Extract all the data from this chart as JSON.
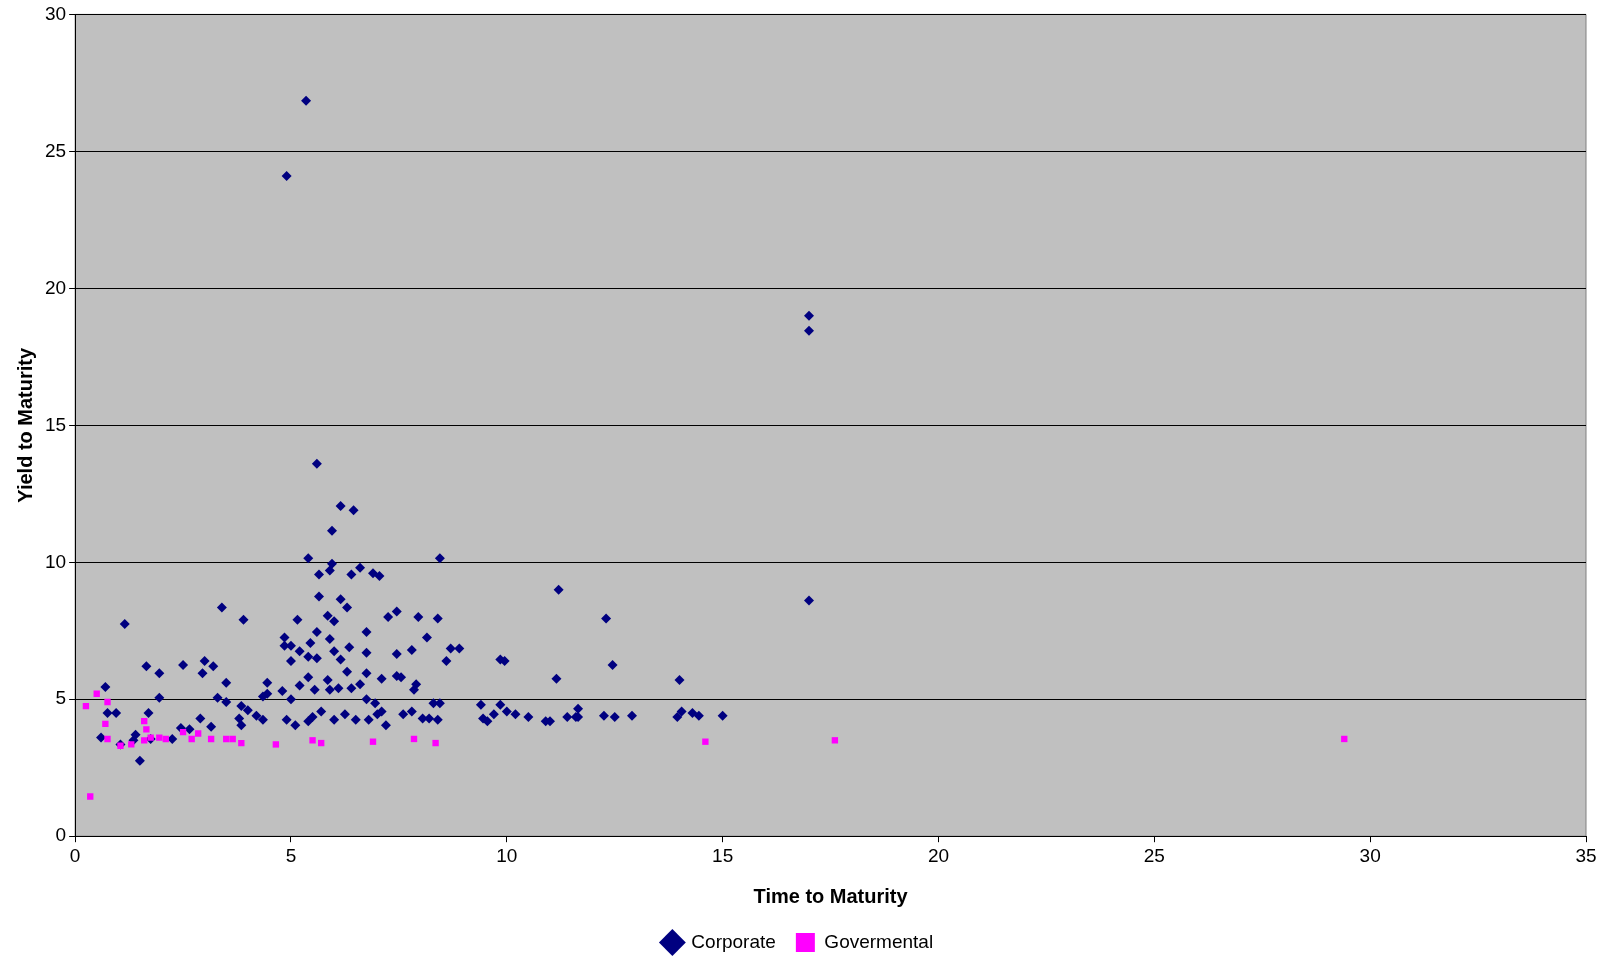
{
  "chart_data": {
    "type": "scatter",
    "xlabel": "Time to Maturity",
    "ylabel": "Yield to Maturity",
    "xlim": [
      0,
      35
    ],
    "xticks": [
      0,
      5,
      10,
      15,
      20,
      25,
      30,
      35
    ],
    "ylim": [
      0,
      30
    ],
    "yticks": [
      0,
      5,
      10,
      15,
      20,
      25,
      30
    ],
    "grid": "y",
    "legend": "bottom",
    "series": [
      {
        "name": "Corporate",
        "color": "#000080",
        "marker": "diamond",
        "x": [
          5.35,
          4.9,
          17,
          17,
          17,
          5.6,
          6.15,
          6.45,
          5.95,
          5.4,
          8.45,
          5.95,
          6.6,
          5.9,
          6.9,
          7.05,
          5.65,
          6.4,
          11.2,
          5.65,
          6.15,
          6.3,
          3.4,
          7.45,
          7.25,
          5.85,
          7.95,
          8.4,
          12.3,
          3.9,
          5.15,
          1.15,
          6.0,
          5.6,
          6.75,
          8.15,
          4.85,
          5.45,
          5.9,
          4.85,
          5.0,
          6.35,
          8.7,
          8.9,
          5.2,
          6.0,
          5.4,
          6.75,
          7.8,
          7.45,
          9.85,
          9.95,
          8.6,
          6.15,
          5.0,
          5.6,
          2.5,
          1.65,
          3.0,
          3.2,
          12.45,
          2.95,
          1.95,
          6.3,
          6.75,
          6.6,
          7.55,
          7.45,
          7.1,
          5.4,
          5.85,
          4.45,
          3.5,
          11.15,
          14.0,
          7.9,
          7.85,
          5.9,
          5.55,
          6.4,
          4.8,
          5.2,
          6.1,
          0.7,
          1.95,
          3.3,
          4.35,
          3.5,
          4.45,
          5.0,
          6.75,
          6.95,
          7.1,
          3.85,
          4.0,
          1.7,
          0.75,
          0.95,
          8.3,
          8.45,
          9.4,
          9.85,
          10.0,
          11.65,
          14.05,
          14.3,
          14.45,
          15.0,
          12.25,
          12.5,
          12.9,
          11.4,
          11.6,
          10.5,
          10.2,
          9.7,
          9.55,
          9.45,
          10.9,
          11.0,
          11.65,
          13.95,
          7.6,
          7.8,
          8.05,
          8.2,
          8.4,
          7.0,
          6.8,
          7.2,
          6.5,
          6.25,
          6.0,
          5.4,
          5.1,
          4.9,
          5.7,
          5.5,
          4.35,
          4.2,
          3.8,
          3.85,
          2.9,
          2.65,
          2.45,
          3.15,
          1.4,
          0.6,
          1.75,
          1.5,
          1.05,
          1.35,
          2.25
        ],
        "values": [
          26.85,
          24.1,
          19.0,
          18.45,
          8.6,
          13.6,
          12.05,
          11.9,
          11.15,
          10.15,
          10.15,
          9.95,
          9.8,
          9.7,
          9.6,
          9.5,
          9.55,
          9.55,
          9.0,
          8.75,
          8.65,
          8.35,
          8.35,
          8.2,
          8.0,
          8.05,
          8.0,
          7.95,
          7.95,
          7.9,
          7.9,
          7.75,
          7.85,
          7.45,
          7.45,
          7.25,
          7.25,
          7.05,
          7.2,
          6.95,
          6.95,
          6.9,
          6.85,
          6.85,
          6.75,
          6.75,
          6.55,
          6.7,
          6.8,
          6.65,
          6.45,
          6.4,
          6.4,
          6.45,
          6.4,
          6.5,
          6.25,
          6.2,
          6.4,
          6.2,
          6.25,
          5.95,
          5.95,
          6.0,
          5.95,
          5.55,
          5.8,
          5.85,
          5.75,
          5.8,
          5.7,
          5.6,
          5.6,
          5.75,
          5.7,
          5.55,
          5.35,
          5.35,
          5.35,
          5.4,
          5.3,
          5.5,
          5.4,
          5.45,
          5.05,
          5.05,
          5.1,
          4.9,
          5.2,
          5.0,
          5.0,
          4.85,
          4.55,
          4.75,
          4.6,
          4.5,
          4.5,
          4.5,
          4.85,
          4.85,
          4.8,
          4.8,
          4.55,
          4.65,
          4.55,
          4.5,
          4.4,
          4.4,
          4.4,
          4.35,
          4.4,
          4.35,
          4.35,
          4.35,
          4.45,
          4.45,
          4.2,
          4.3,
          4.2,
          4.2,
          4.35,
          4.35,
          4.45,
          4.55,
          4.3,
          4.3,
          4.25,
          4.45,
          4.25,
          4.05,
          4.25,
          4.45,
          4.25,
          4.2,
          4.05,
          4.25,
          4.55,
          4.35,
          4.25,
          4.4,
          4.3,
          4.05,
          4.3,
          3.9,
          3.95,
          4.0,
          3.7,
          3.6,
          3.55,
          2.75,
          3.35,
          3.5,
          3.55
        ]
      },
      {
        "name": "Govermental",
        "color": "#ff00ff",
        "marker": "square",
        "x": [
          0.25,
          0.5,
          0.75,
          0.7,
          0.75,
          0.35,
          1.05,
          1.3,
          1.6,
          1.65,
          1.6,
          1.75,
          1.95,
          2.1,
          2.5,
          2.7,
          2.85,
          3.15,
          3.5,
          3.65,
          3.85,
          4.65,
          5.5,
          5.7,
          6.9,
          7.85,
          8.35,
          14.6,
          17.6,
          29.4
        ],
        "values": [
          4.75,
          5.2,
          4.9,
          4.1,
          3.55,
          1.45,
          3.3,
          3.35,
          4.2,
          3.9,
          3.5,
          3.6,
          3.6,
          3.55,
          3.8,
          3.55,
          3.75,
          3.55,
          3.55,
          3.55,
          3.4,
          3.35,
          3.5,
          3.4,
          3.45,
          3.55,
          3.4,
          3.45,
          3.5,
          3.55
        ]
      }
    ]
  }
}
